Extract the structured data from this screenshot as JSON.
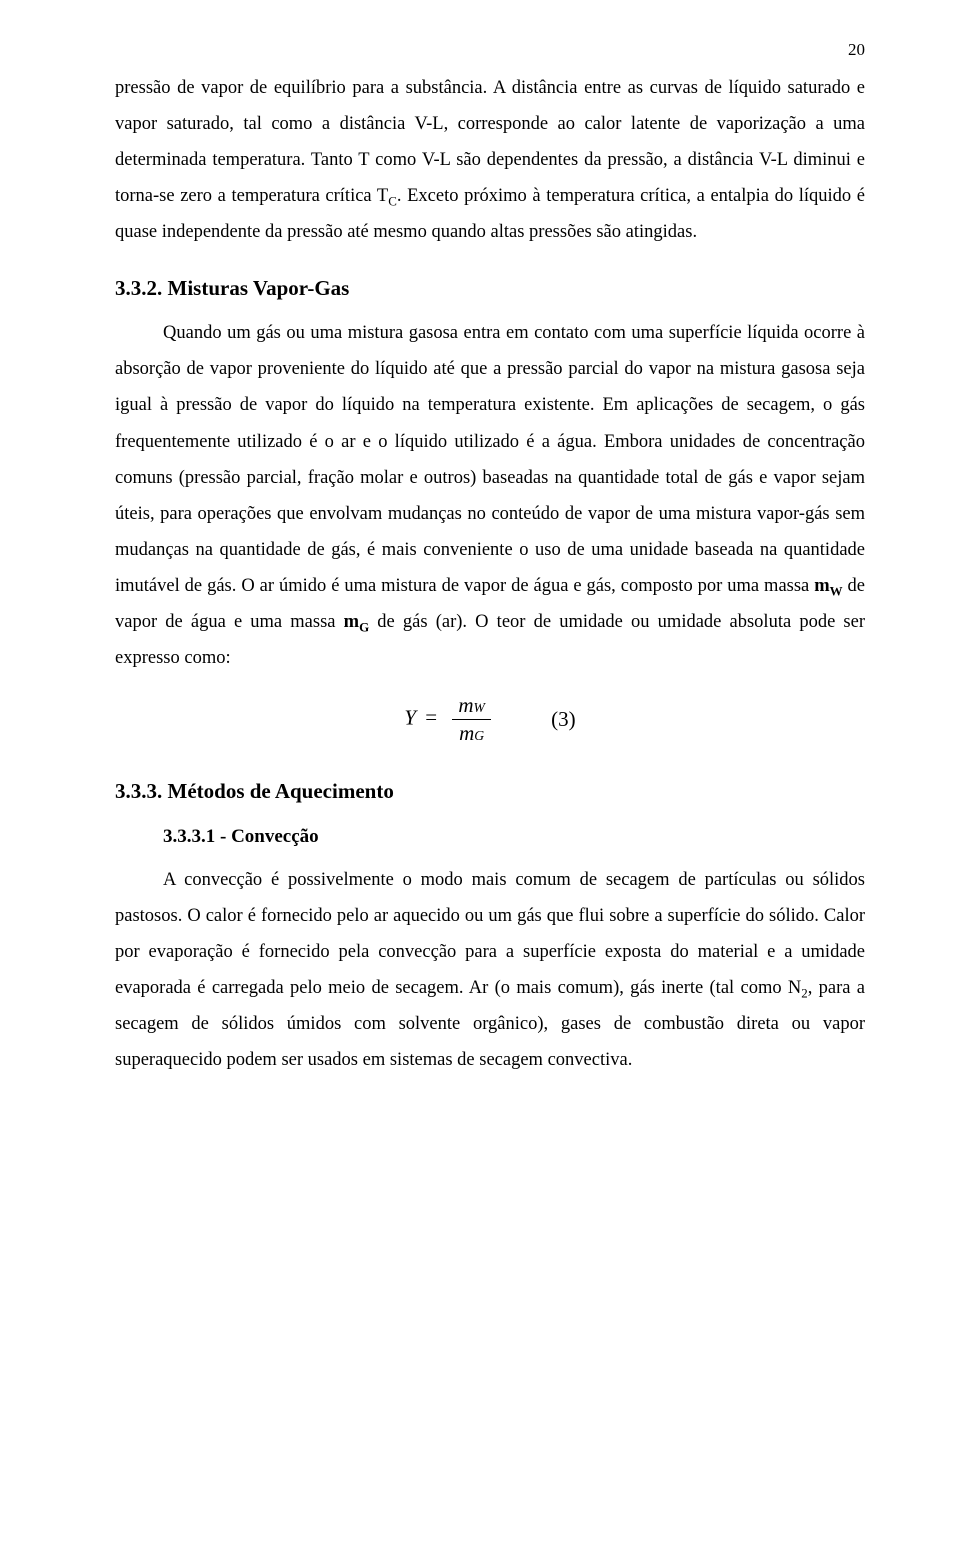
{
  "page": {
    "number": "20",
    "font_family": "Times New Roman",
    "body_fontsize_pt": 12,
    "heading_fontsize_pt": 14,
    "line_height": 1.95,
    "text_color": "#000000",
    "background_color": "#ffffff"
  },
  "paragraphs": {
    "p1_part1": "pressão de vapor de equilíbrio para a substância. A distância entre as curvas de líquido saturado e vapor saturado, tal como a distância V-L, corresponde ao calor latente de vaporização a uma determinada temperatura. Tanto T como V-L são dependentes da pressão, a distância V-L diminui e torna-se zero a temperatura crítica T",
    "p1_sub1": "C",
    "p1_part2": ". Exceto próximo à temperatura crítica, a entalpia do líquido é quase independente da pressão até mesmo quando altas pressões são atingidas.",
    "h1": "3.3.2. Misturas Vapor-Gas",
    "p2_part1": "Quando um gás ou uma mistura gasosa entra em contato com uma superfície líquida ocorre à absorção de vapor proveniente do líquido até que a pressão parcial do vapor na mistura gasosa seja igual à pressão de vapor do líquido na temperatura existente. Em aplicações de secagem, o gás frequentemente utilizado é o ar e o líquido utilizado é a água. Embora unidades de concentração comuns (pressão parcial, fração molar e outros) baseadas na quantidade total de gás e vapor sejam úteis, para operações que envolvam mudanças no conteúdo de vapor de uma mistura vapor-gás sem mudanças na quantidade de gás, é mais conveniente o uso de uma unidade baseada na quantidade imutável de gás. O ar úmido é uma mistura de vapor de água e gás, composto por uma massa ",
    "p2_mw": "m",
    "p2_mw_sub": "W",
    "p2_part2": " de vapor de água e uma massa ",
    "p2_mg": "m",
    "p2_mg_sub": "G",
    "p2_part3": " de gás (ar). O teor de umidade ou umidade absoluta pode ser expresso como:",
    "h2": "3.3.3. Métodos de Aquecimento",
    "h3": "3.3.3.1 - Convecção",
    "p3_part1": "A convecção é possivelmente o modo mais comum de secagem de partículas ou sólidos pastosos. O calor é fornecido pelo ar aquecido ou um gás que flui sobre a superfície do sólido. Calor por evaporação é fornecido pela convecção para a superfície exposta do material e a umidade evaporada é carregada pelo meio de secagem. Ar (o mais comum), gás inerte (tal como N",
    "p3_sub1": "2",
    "p3_part2": ", para a secagem de sólidos úmidos com solvente orgânico), gases de combustão direta ou vapor superaquecido podem ser usados em sistemas de secagem convectiva."
  },
  "equation": {
    "lhs": "Y",
    "eq": "=",
    "num_var": "m",
    "num_sub": "W",
    "den_var": "m",
    "den_sub": "G",
    "label": "(3)"
  }
}
